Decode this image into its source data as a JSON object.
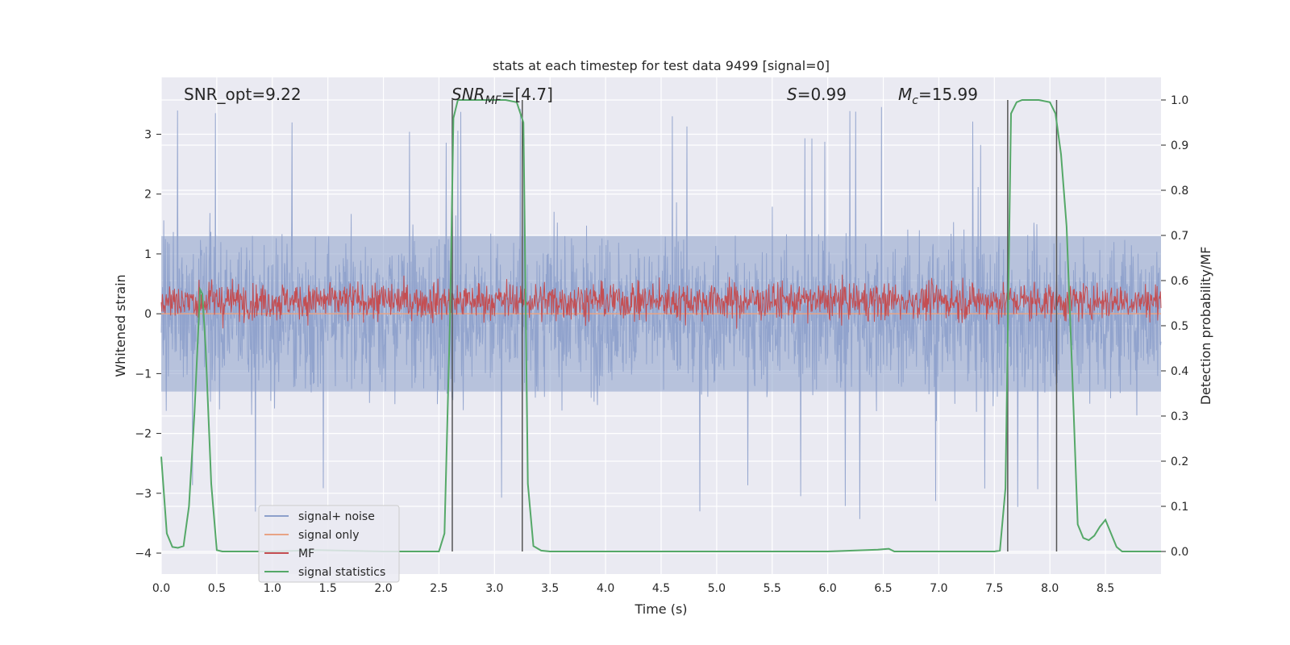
{
  "chart_data": {
    "type": "line",
    "title": "stats at each timestep for test data 9499 [signal=0]",
    "xlabel": "Time (s)",
    "ylabel": "Whitened strain",
    "y2label": "Detection probability/MF",
    "xlim": [
      0,
      9.0
    ],
    "ylim": [
      -4.35,
      3.95
    ],
    "y2lim": [
      -0.05,
      1.05
    ],
    "xticks": [
      "0.0",
      "0.5",
      "1.0",
      "1.5",
      "2.0",
      "2.5",
      "3.0",
      "3.5",
      "4.0",
      "4.5",
      "5.0",
      "5.5",
      "6.0",
      "6.5",
      "7.0",
      "7.5",
      "8.0",
      "8.5"
    ],
    "yticks": [
      "3",
      "2",
      "1",
      "0",
      "−1",
      "−2",
      "−3",
      "−4"
    ],
    "y2ticks": [
      "1.0",
      "0.9",
      "0.8",
      "0.7",
      "0.6",
      "0.5",
      "0.4",
      "0.3",
      "0.2",
      "0.1",
      "0.0"
    ],
    "grid": true,
    "legend_position": "lower-left",
    "annotations": {
      "snr_opt": "SNR_opt=9.22",
      "snr_mf_main": "SNR",
      "snr_mf_sub": "MF",
      "snr_mf_rest": "=[4.7]",
      "s_sym": "S",
      "s_rest": "=0.99",
      "mc_sym": "M",
      "mc_sub": "c",
      "mc_rest": "=15.99"
    },
    "series": [
      {
        "name": "signal+ noise",
        "color": "#8da0cb",
        "style": "noise",
        "amplitude_y": [
          -2.8,
          2.8
        ],
        "peaks_y": [
          -4.0,
          3.6
        ]
      },
      {
        "name": "signal only",
        "color": "#e8a385",
        "values_y": [
          0,
          0
        ]
      },
      {
        "name": "MF",
        "color": "#c44e52",
        "band_y2": [
          0.53,
          0.58
        ]
      },
      {
        "name": "signal statistics",
        "color": "#55a868",
        "x": [
          0.0,
          0.05,
          0.1,
          0.15,
          0.2,
          0.25,
          0.3,
          0.35,
          0.37,
          0.4,
          0.45,
          0.5,
          0.55,
          1.0,
          1.4,
          2.0,
          2.5,
          2.55,
          2.6,
          2.63,
          2.67,
          2.72,
          2.8,
          3.0,
          3.1,
          3.2,
          3.26,
          3.3,
          3.35,
          3.42,
          3.5,
          4.0,
          5.0,
          6.0,
          6.45,
          6.55,
          6.6,
          7.0,
          7.5,
          7.55,
          7.6,
          7.65,
          7.7,
          7.75,
          7.8,
          7.9,
          8.0,
          8.05,
          8.1,
          8.15,
          8.2,
          8.25,
          8.3,
          8.35,
          8.4,
          8.45,
          8.5,
          8.55,
          8.6,
          8.65,
          8.7,
          8.8,
          9.0
        ],
        "y2": [
          0.21,
          0.04,
          0.01,
          0.008,
          0.012,
          0.1,
          0.31,
          0.58,
          0.57,
          0.45,
          0.15,
          0.003,
          0.0,
          0.0,
          0.003,
          0.0,
          0.0,
          0.04,
          0.52,
          0.96,
          1.0,
          1.0,
          1.0,
          1.0,
          1.0,
          0.995,
          0.95,
          0.15,
          0.012,
          0.002,
          0.0,
          0.0,
          0.0,
          0.0,
          0.004,
          0.006,
          0.0,
          0.0,
          0.0,
          0.002,
          0.14,
          0.97,
          0.995,
          1.0,
          1.0,
          1.0,
          0.995,
          0.97,
          0.88,
          0.72,
          0.4,
          0.06,
          0.03,
          0.025,
          0.035,
          0.055,
          0.07,
          0.04,
          0.01,
          0.0,
          0.0,
          0.0,
          0.0
        ]
      }
    ],
    "vlines_x": [
      2.62,
      3.25,
      7.62,
      8.06
    ]
  }
}
